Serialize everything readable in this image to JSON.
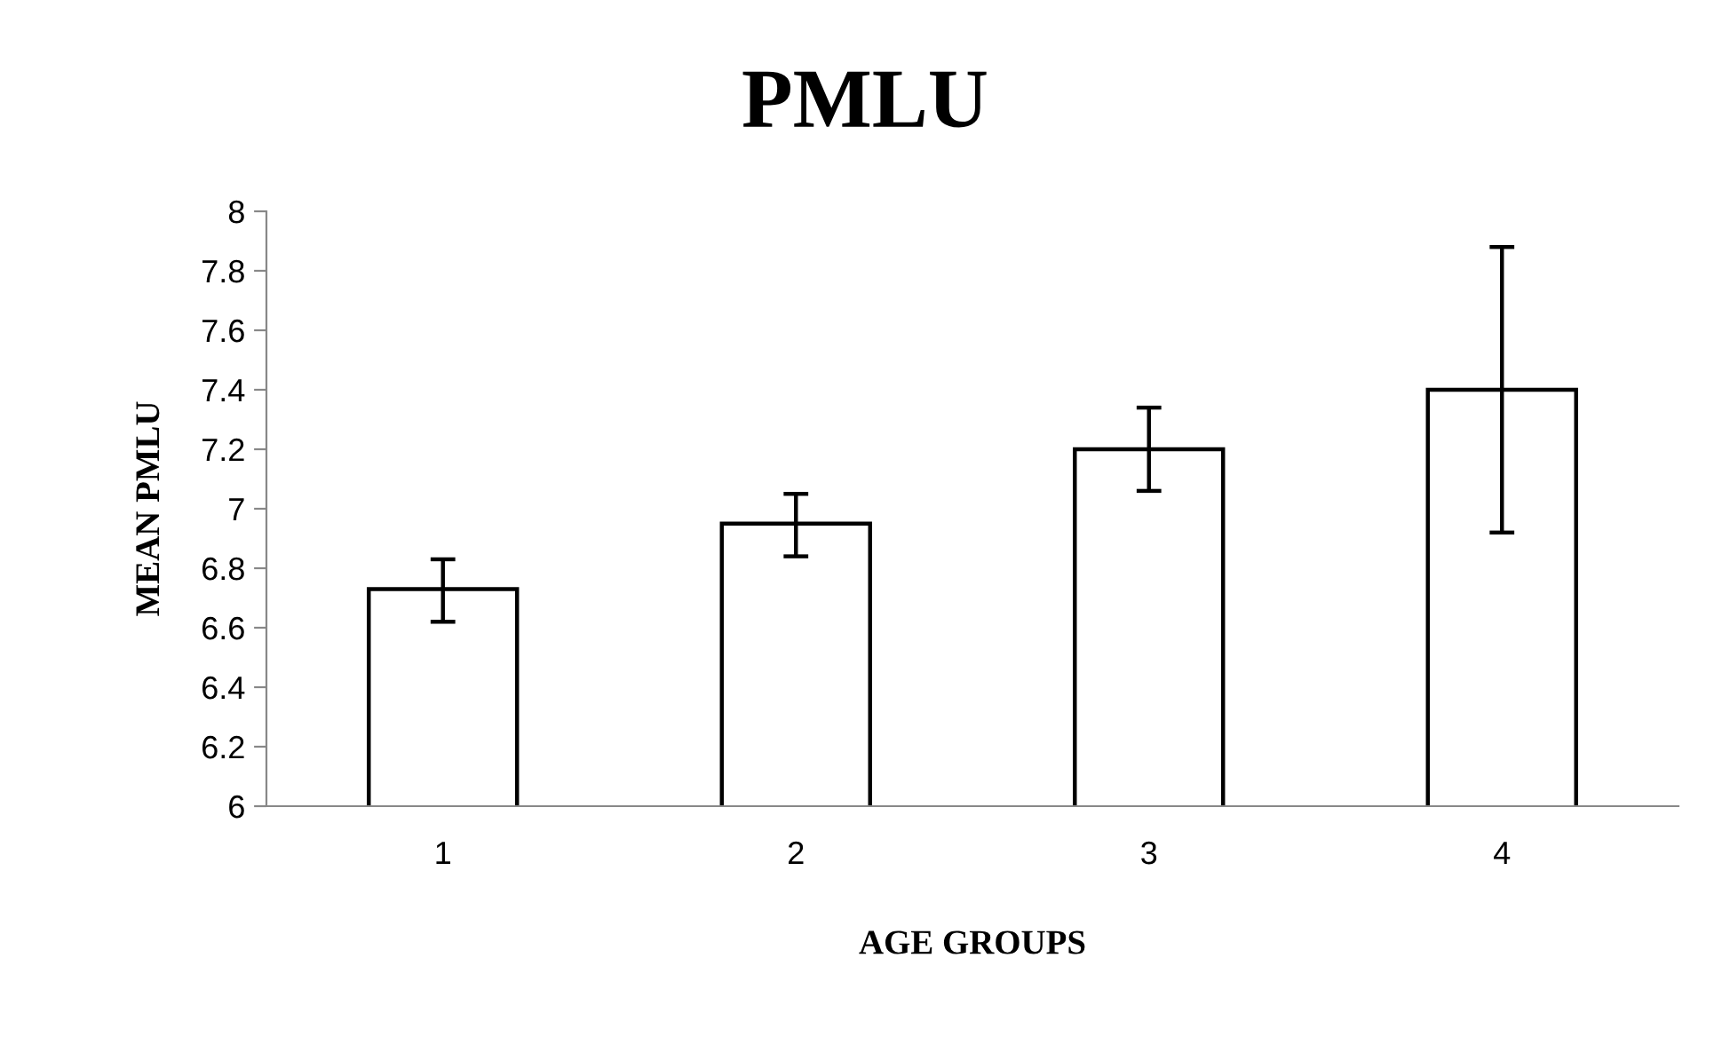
{
  "chart_data": {
    "type": "bar",
    "title": "PMLU",
    "xlabel": "AGE GROUPS",
    "ylabel": "MEAN PMLU",
    "categories": [
      "1",
      "2",
      "3",
      "4"
    ],
    "values": [
      6.73,
      6.95,
      7.2,
      7.4
    ],
    "errors": [
      [
        6.62,
        6.83
      ],
      [
        6.84,
        7.05
      ],
      [
        7.06,
        7.34
      ],
      [
        6.92,
        7.88
      ]
    ],
    "color": "#ffffff",
    "ylim": [
      6,
      8
    ],
    "yticks": [
      6,
      6.2,
      6.4,
      6.6,
      6.8,
      7,
      7.2,
      7.4,
      7.6,
      7.8,
      8
    ],
    "grid": false,
    "legend": false
  }
}
